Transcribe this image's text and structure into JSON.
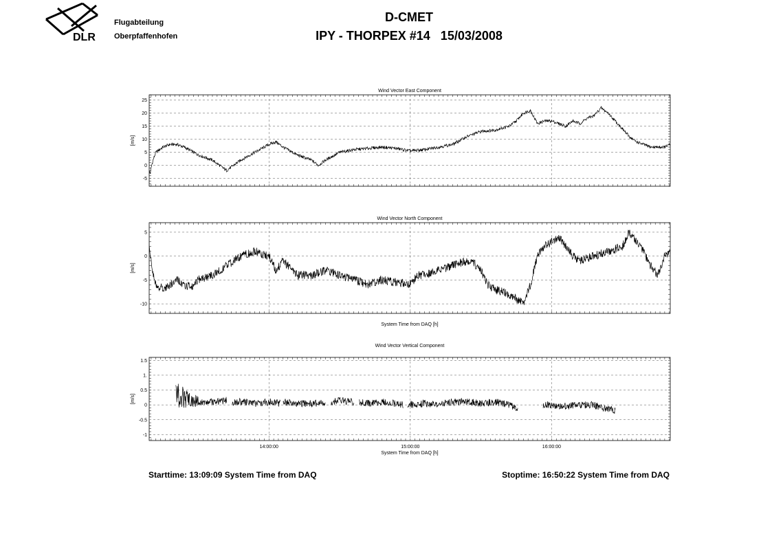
{
  "header": {
    "logo_text": "DLR",
    "org_line1": "Flugabteilung",
    "org_line2": "Oberpfaffenhofen",
    "title": "D-CMET",
    "subtitle": "IPY - THORPEX #14   15/03/2008"
  },
  "footer": {
    "start_time": "Starttime: 13:09:09 System Time from DAQ",
    "stop_time": "Stoptime: 16:50:22 System Time from DAQ"
  },
  "colors": {
    "line": "#000000",
    "grid": "#555555",
    "background": "#ffffff"
  },
  "chart_data": [
    {
      "type": "line",
      "title": "Wind Vector East Component",
      "xlabel": "",
      "ylabel": "[m/s]",
      "xlim": [
        13.1525,
        16.8394
      ],
      "ylim": [
        -8,
        27
      ],
      "yticks": [
        -5,
        0,
        5,
        10,
        15,
        20,
        25
      ],
      "ytick_labels": [
        "-5",
        "0",
        "5",
        "10",
        "15",
        "20",
        "25"
      ],
      "xticks": [
        14.0,
        15.0,
        16.0
      ],
      "xtick_labels": [],
      "grid": true,
      "series": [
        {
          "x": [
            13.15,
            13.16,
            13.17,
            13.18,
            13.2,
            13.25,
            13.3,
            13.35,
            13.4,
            13.5,
            13.6,
            13.65,
            13.7,
            13.8,
            13.9,
            14.0,
            14.05,
            14.1,
            14.2,
            14.3,
            14.35,
            14.4,
            14.5,
            14.6,
            14.7,
            14.8,
            14.9,
            15.0,
            15.1,
            15.2,
            15.3,
            15.4,
            15.5,
            15.6,
            15.7,
            15.75,
            15.8,
            15.85,
            15.9,
            15.95,
            16.0,
            16.05,
            16.1,
            16.15,
            16.2,
            16.25,
            16.3,
            16.35,
            16.4,
            16.5,
            16.55,
            16.6,
            16.7,
            16.8,
            16.84
          ],
          "y": [
            -2,
            -3,
            0,
            2,
            5,
            7,
            8,
            8,
            7,
            4,
            2,
            0,
            -2,
            2,
            5,
            8,
            9,
            7,
            4,
            2,
            0,
            2,
            5,
            6,
            6.5,
            7,
            6.5,
            5.5,
            6,
            7,
            8,
            11,
            13,
            13.5,
            15,
            17,
            20,
            21,
            16,
            17,
            17,
            16,
            15,
            17,
            16,
            18,
            19,
            22,
            20,
            14,
            11,
            9,
            7,
            7,
            8
          ]
        }
      ]
    },
    {
      "type": "line",
      "title": "Wind Vector North Component",
      "xlabel": "System Time from DAQ [h]",
      "ylabel": "[m/s]",
      "xlim": [
        13.1525,
        16.8394
      ],
      "ylim": [
        -12,
        7
      ],
      "yticks": [
        -10,
        -5,
        0,
        5
      ],
      "ytick_labels": [
        "-10",
        "-5",
        "0",
        "5"
      ],
      "xticks": [
        14.0,
        15.0,
        16.0
      ],
      "xtick_labels": [],
      "grid": true,
      "series": [
        {
          "x": [
            13.15,
            13.16,
            13.17,
            13.18,
            13.2,
            13.25,
            13.3,
            13.35,
            13.4,
            13.45,
            13.5,
            13.6,
            13.7,
            13.8,
            13.9,
            14.0,
            14.05,
            14.1,
            14.2,
            14.3,
            14.4,
            14.5,
            14.6,
            14.7,
            14.8,
            14.9,
            15.0,
            15.05,
            15.1,
            15.2,
            15.3,
            15.4,
            15.45,
            15.5,
            15.55,
            15.6,
            15.65,
            15.7,
            15.75,
            15.8,
            15.85,
            15.9,
            15.95,
            16.0,
            16.05,
            16.1,
            16.15,
            16.2,
            16.3,
            16.4,
            16.5,
            16.55,
            16.6,
            16.65,
            16.7,
            16.75,
            16.8,
            16.84
          ],
          "y": [
            4,
            0,
            -2,
            -4,
            -6,
            -7,
            -6,
            -5,
            -6,
            -6.5,
            -5,
            -4,
            -2,
            0,
            1,
            0,
            -3,
            -1,
            -4,
            -4,
            -3,
            -4,
            -5,
            -6,
            -5,
            -5.5,
            -6,
            -4,
            -4,
            -3,
            -2,
            -1,
            -1.5,
            -3,
            -6,
            -7,
            -7.5,
            -8,
            -9,
            -10,
            -6,
            0,
            2,
            3,
            4,
            2,
            0,
            -1,
            0,
            1,
            2,
            5,
            3,
            1,
            -2,
            -4,
            0,
            1
          ]
        }
      ]
    },
    {
      "type": "line",
      "title": "Wind Vector Vertical Component",
      "xlabel": "System Time from DAQ [h]",
      "ylabel": "[m/s]",
      "xlim": [
        13.1525,
        16.8394
      ],
      "ylim": [
        -1.2,
        1.6
      ],
      "yticks": [
        -1,
        -0.5,
        0,
        0.5,
        1,
        1.5
      ],
      "ytick_labels": [
        "-1",
        "-0.5",
        "0",
        "0.5",
        "1.",
        "1.5"
      ],
      "xticks": [
        14.0,
        15.0,
        16.0
      ],
      "xtick_labels": [
        "14:00:00",
        "15:00:00",
        "16:00:00"
      ],
      "grid": true,
      "series": [
        {
          "segments": [
            {
              "x": [
                13.34,
                13.42,
                13.5,
                13.6,
                13.7
              ],
              "y": [
                0.3,
                0.2,
                0.1,
                0.1,
                0.15
              ]
            },
            {
              "x": [
                13.74,
                13.82,
                13.9,
                14.0,
                14.08
              ],
              "y": [
                0.1,
                0.1,
                0.05,
                0.1,
                0.05
              ]
            },
            {
              "x": [
                14.1,
                14.2,
                14.3,
                14.4
              ],
              "y": [
                0.1,
                0.05,
                0.05,
                0.05
              ]
            },
            {
              "x": [
                14.44,
                14.5,
                14.6
              ],
              "y": [
                0.1,
                0.15,
                0.1
              ]
            },
            {
              "x": [
                14.64,
                14.7,
                14.8,
                14.88,
                14.95
              ],
              "y": [
                0.1,
                0.05,
                0.1,
                0.05,
                0.0
              ]
            },
            {
              "x": [
                14.98,
                15.1,
                15.2,
                15.3,
                15.4,
                15.5,
                15.6,
                15.7,
                15.76
              ],
              "y": [
                0.0,
                0.05,
                0.0,
                0.1,
                0.1,
                0.05,
                0.1,
                0.0,
                -0.15
              ]
            },
            {
              "x": [
                15.94,
                16.0,
                16.1,
                16.2,
                16.3,
                16.36,
                16.45
              ],
              "y": [
                0.0,
                0.0,
                -0.05,
                0.0,
                0.0,
                -0.1,
                -0.2
              ]
            }
          ]
        }
      ]
    }
  ]
}
